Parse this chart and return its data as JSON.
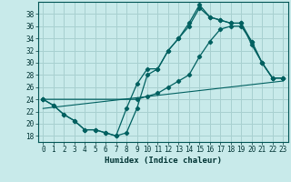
{
  "xlabel": "Humidex (Indice chaleur)",
  "bg_color": "#c8eaea",
  "grid_color": "#a8d0d0",
  "line_color": "#006060",
  "xlim": [
    -0.5,
    23.5
  ],
  "ylim": [
    17,
    40
  ],
  "yticks": [
    18,
    20,
    22,
    24,
    26,
    28,
    30,
    32,
    34,
    36,
    38
  ],
  "xticks": [
    0,
    1,
    2,
    3,
    4,
    5,
    6,
    7,
    8,
    9,
    10,
    11,
    12,
    13,
    14,
    15,
    16,
    17,
    18,
    19,
    20,
    21,
    22,
    23
  ],
  "line1_x": [
    0,
    1,
    2,
    3,
    4,
    5,
    6,
    7,
    8,
    9,
    10,
    11,
    12,
    13,
    14,
    15,
    16,
    17,
    18,
    19,
    20,
    21,
    22,
    23
  ],
  "line1_y": [
    24.0,
    23.0,
    21.5,
    20.5,
    19.0,
    19.0,
    18.5,
    18.0,
    18.5,
    22.5,
    28.0,
    29.0,
    32.0,
    34.0,
    36.0,
    39.0,
    37.5,
    37.0,
    36.5,
    36.5,
    33.0,
    30.0,
    27.5,
    27.5
  ],
  "line2_x": [
    0,
    1,
    2,
    3,
    4,
    5,
    6,
    7,
    8,
    9,
    10,
    11,
    12,
    13,
    14,
    15,
    16,
    17,
    18,
    19,
    20,
    21,
    22,
    23
  ],
  "line2_y": [
    24.0,
    23.0,
    21.5,
    20.5,
    19.0,
    19.0,
    18.5,
    18.0,
    22.5,
    26.5,
    29.0,
    29.0,
    32.0,
    34.0,
    36.5,
    39.5,
    37.5,
    37.0,
    36.5,
    36.5,
    33.5,
    30.0,
    27.5,
    27.5
  ],
  "line3_x": [
    0,
    9,
    10,
    11,
    12,
    13,
    14,
    15,
    16,
    17,
    18,
    19,
    20,
    21,
    22,
    23
  ],
  "line3_y": [
    24.0,
    24.0,
    24.5,
    25.0,
    26.0,
    27.0,
    28.0,
    31.0,
    33.5,
    35.5,
    36.0,
    36.0,
    33.5,
    30.0,
    27.5,
    27.5
  ]
}
